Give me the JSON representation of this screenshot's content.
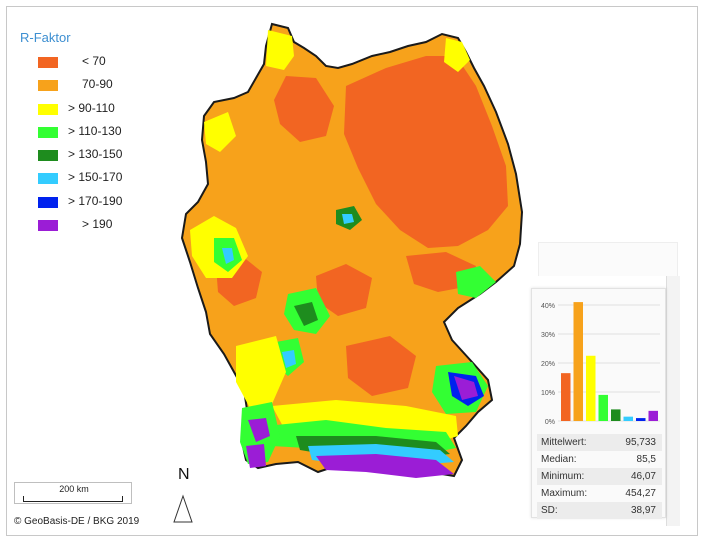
{
  "legend": {
    "title": "R-Faktor",
    "items": [
      {
        "label": "< 70",
        "color": "#f26522"
      },
      {
        "label": "70-90",
        "color": "#f7a21b"
      },
      {
        "label": "> 90-110",
        "color": "#ffff00"
      },
      {
        "label": "> 110-130",
        "color": "#33ff33"
      },
      {
        "label": "> 130-150",
        "color": "#1e8c1e"
      },
      {
        "label": "> 150-170",
        "color": "#33ccff"
      },
      {
        "label": "> 170-190",
        "color": "#0022ee"
      },
      {
        "label": "> 190",
        "color": "#9b1dd6"
      }
    ]
  },
  "scalebar": {
    "label": "200 km"
  },
  "copyright": "© GeoBasis-DE / BKG 2019",
  "north": {
    "label": "N"
  },
  "chart_data": {
    "type": "bar",
    "categories": [
      "< 70",
      "70-90",
      "> 90-110",
      "> 110-130",
      "> 130-150",
      "> 150-170",
      "> 170-190",
      "> 190"
    ],
    "values": [
      16.5,
      41,
      22.5,
      9,
      4,
      1.5,
      1,
      3.5
    ],
    "colors": [
      "#f26522",
      "#f7a21b",
      "#ffff00",
      "#33ff33",
      "#1e8c1e",
      "#33ccff",
      "#0022ee",
      "#9b1dd6"
    ],
    "ylim": [
      0,
      40
    ],
    "yticks": [
      "0%",
      "10%",
      "20%",
      "30%",
      "40%"
    ],
    "title": "",
    "xlabel": "",
    "ylabel": ""
  },
  "stats": [
    {
      "label": "Mittelwert:",
      "value": "95,733"
    },
    {
      "label": "Median:",
      "value": "85,5"
    },
    {
      "label": "Minimum:",
      "value": "46,07"
    },
    {
      "label": "Maximum:",
      "value": "454,27"
    },
    {
      "label": "SD:",
      "value": "38,97"
    }
  ]
}
